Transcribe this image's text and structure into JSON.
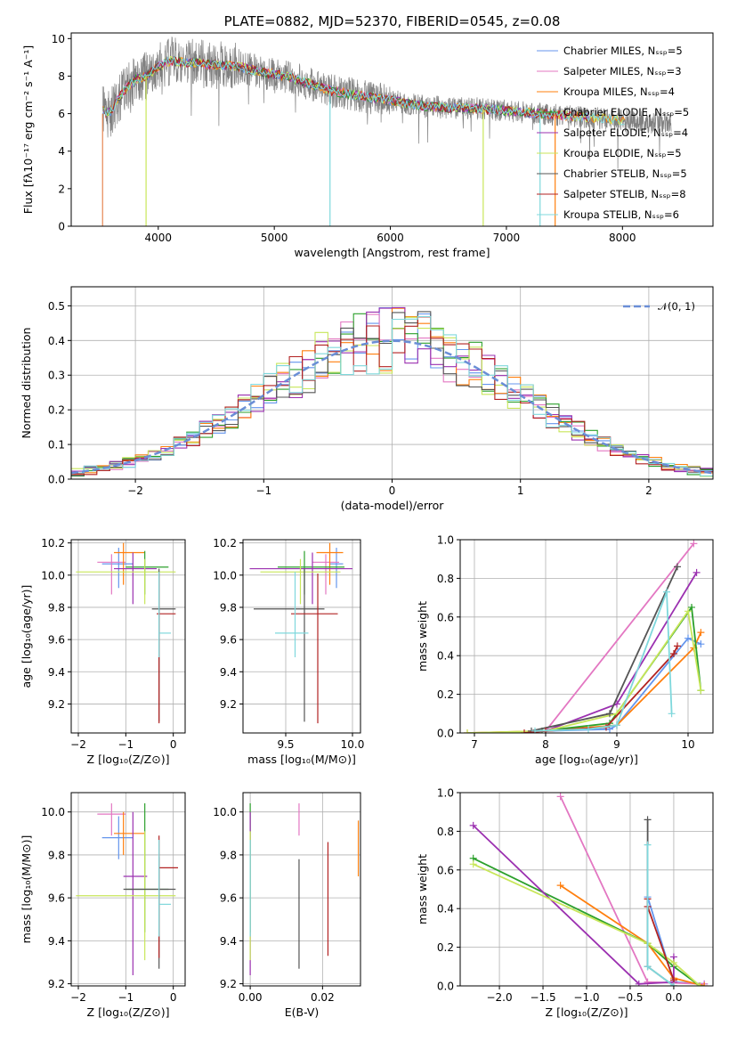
{
  "colors": {
    "Chabrier MILES": "#6495ed",
    "Salpeter MILES": "#e377c2",
    "Kroupa MILES": "#ff7f0e",
    "Chabrier ELODIE": "#2ca02c",
    "Salpeter ELODIE": "#9b30b0",
    "Kroupa ELODIE": "#c8e65a",
    "Chabrier STELIB": "#555555",
    "Salpeter STELIB": "#b22222",
    "Kroupa STELIB": "#7fd8dc"
  },
  "chart_data": [
    {
      "id": "spectrum",
      "type": "line",
      "title": "PLATE=0882, MJD=52370, FIBERID=0545, z=0.08",
      "xlabel": "wavelength [Angstrom, rest frame]",
      "ylabel": "Flux [fλ10⁻¹⁷ erg cm⁻² s⁻¹ A⁻¹]",
      "xlim": [
        3250,
        8780
      ],
      "ylim": [
        0,
        10.3
      ],
      "xticks": [
        "4000",
        "5000",
        "6000",
        "7000",
        "8000"
      ],
      "yticks": [
        "0",
        "2",
        "4",
        "6",
        "8",
        "10"
      ],
      "legend_placement": "right",
      "legend": [
        {
          "model": "Chabrier MILES",
          "label": "Chabrier MILES, Nₛₛₚ=5"
        },
        {
          "model": "Salpeter MILES",
          "label": "Salpeter MILES, Nₛₛₚ=3"
        },
        {
          "model": "Kroupa MILES",
          "label": "Kroupa MILES, Nₛₛₚ=4"
        },
        {
          "model": "Chabrier ELODIE",
          "label": "Chabrier ELODIE, Nₛₛₚ=5"
        },
        {
          "model": "Salpeter ELODIE",
          "label": "Salpeter ELODIE, Nₛₛₚ=4"
        },
        {
          "model": "Kroupa ELODIE",
          "label": "Kroupa ELODIE, Nₛₛₚ=5"
        },
        {
          "model": "Chabrier STELIB",
          "label": "Chabrier STELIB, Nₛₛₚ=5"
        },
        {
          "model": "Salpeter STELIB",
          "label": "Salpeter STELIB, Nₛₛₚ=8"
        },
        {
          "model": "Kroupa STELIB",
          "label": "Kroupa STELIB, Nₛₛₚ=6"
        }
      ],
      "data_series": {
        "name": "observed",
        "color": "#808080"
      },
      "continuum": {
        "x": [
          3520,
          3560,
          3600,
          3700,
          3800,
          3900,
          4000,
          4100,
          4300,
          4500,
          4700,
          4900,
          5100,
          5300,
          5500,
          5700,
          5900,
          6100,
          6300,
          6500,
          6700,
          6900,
          7100,
          7300,
          7500,
          7700,
          7900,
          8100,
          8300,
          8400
        ],
        "y": [
          6.2,
          6.0,
          6.2,
          7.2,
          7.8,
          8.0,
          8.5,
          8.8,
          8.7,
          8.6,
          8.5,
          8.2,
          8.0,
          7.6,
          7.2,
          7.0,
          6.8,
          6.6,
          6.4,
          6.3,
          6.3,
          6.2,
          6.1,
          6.0,
          5.9,
          5.8,
          5.7,
          5.6,
          5.5,
          5.5
        ]
      },
      "model_drops": [
        {
          "model": "Kroupa ELODIE",
          "x": 3895
        },
        {
          "model": "Kroupa STELIB",
          "x": 5480
        },
        {
          "model": "Kroupa ELODIE",
          "x": 6800
        },
        {
          "model": "Kroupa STELIB",
          "x": 7290
        },
        {
          "model": "Kroupa MILES",
          "x": 7420
        }
      ]
    },
    {
      "id": "residuals",
      "type": "step",
      "xlabel": "(data-model)/error",
      "ylabel": "Normed distribution",
      "xlim": [
        -2.5,
        2.5
      ],
      "ylim": [
        0,
        0.555
      ],
      "xticks": [
        "−2",
        "−1",
        "0",
        "1",
        "2"
      ],
      "yticks": [
        "0.0",
        "0.1",
        "0.2",
        "0.3",
        "0.4",
        "0.5"
      ],
      "legend": [
        {
          "label": "𝒩(0, 1)",
          "color": "#6a8ed6",
          "style": "dashed"
        }
      ],
      "legend_placement": "top-right",
      "bin_width": 0.1,
      "reference_curve": "normal(0,1)"
    },
    {
      "id": "age_vs_Z",
      "type": "errorbar",
      "xlabel": "Z [log₁₀(Z/Z⊙)]",
      "ylabel": "age  [log₁₀(age/yr)]",
      "xlim": [
        -2.15,
        0.25
      ],
      "ylim": [
        9.02,
        10.22
      ],
      "xticks": [
        "−2",
        "−1",
        "0"
      ],
      "yticks": [
        "9.2",
        "9.4",
        "9.6",
        "9.8",
        "10.0",
        "10.2"
      ],
      "points": [
        {
          "model": "Chabrier MILES",
          "x": -1.15,
          "y": 10.07,
          "x_err": [
            0.35,
            0.3
          ],
          "y_err": [
            0.15,
            0.1
          ]
        },
        {
          "model": "Salpeter MILES",
          "x": -1.3,
          "y": 10.08,
          "x_err": [
            0.3,
            0.3
          ],
          "y_err": [
            0.2,
            0.05
          ]
        },
        {
          "model": "Kroupa MILES",
          "x": -1.05,
          "y": 10.14,
          "x_err": [
            0.2,
            0.45
          ],
          "y_err": [
            0.2,
            0.06
          ]
        },
        {
          "model": "Chabrier ELODIE",
          "x": -0.6,
          "y": 10.05,
          "x_err": [
            0.4,
            0.5
          ],
          "y_err": [
            0.17,
            0.1
          ]
        },
        {
          "model": "Salpeter ELODIE",
          "x": -0.85,
          "y": 10.04,
          "x_err": [
            0.4,
            0.5
          ],
          "y_err": [
            0.22,
            0.1
          ]
        },
        {
          "model": "Kroupa ELODIE",
          "x": -0.6,
          "y": 10.02,
          "x_err": [
            1.45,
            0.65
          ],
          "y_err": [
            0.2,
            0.08
          ]
        },
        {
          "model": "Chabrier STELIB",
          "x": -0.3,
          "y": 9.79,
          "x_err": [
            0.15,
            0.35
          ],
          "y_err": [
            0.7,
            0.25
          ]
        },
        {
          "model": "Salpeter STELIB",
          "x": -0.3,
          "y": 9.76,
          "x_err": [
            0.05,
            0.35
          ],
          "y_err": [
            0.68,
            0.25
          ]
        },
        {
          "model": "Kroupa STELIB",
          "x": -0.3,
          "y": 9.64,
          "x_err": [
            0.0,
            0.25
          ],
          "y_err": [
            0.15,
            0.38
          ]
        }
      ]
    },
    {
      "id": "age_vs_mass",
      "type": "errorbar",
      "xlabel": "mass [log₁₀(M/M⊙)]",
      "ylabel": "",
      "xlim": [
        9.18,
        10.06
      ],
      "ylim": [
        9.02,
        10.22
      ],
      "xticks": [
        "9.5",
        "10.0"
      ],
      "yticks": [
        "9.2",
        "9.4",
        "9.6",
        "9.8",
        "10.0",
        "10.2"
      ],
      "points": [
        {
          "model": "Chabrier MILES",
          "x": 9.88,
          "y": 10.07,
          "x_err": [
            0.05,
            0.05
          ],
          "y_err": [
            0.15,
            0.1
          ]
        },
        {
          "model": "Salpeter MILES",
          "x": 9.8,
          "y": 10.08,
          "x_err": [
            0.1,
            0.1
          ],
          "y_err": [
            0.2,
            0.05
          ]
        },
        {
          "model": "Kroupa MILES",
          "x": 9.83,
          "y": 10.14,
          "x_err": [
            0.1,
            0.1
          ],
          "y_err": [
            0.2,
            0.06
          ]
        },
        {
          "model": "Chabrier ELODIE",
          "x": 9.64,
          "y": 10.05,
          "x_err": [
            0.2,
            0.3
          ],
          "y_err": [
            0.17,
            0.1
          ]
        },
        {
          "model": "Salpeter ELODIE",
          "x": 9.7,
          "y": 10.04,
          "x_err": [
            0.47,
            0.3
          ],
          "y_err": [
            0.22,
            0.1
          ]
        },
        {
          "model": "Kroupa ELODIE",
          "x": 9.61,
          "y": 10.02,
          "x_err": [
            0.3,
            0.3
          ],
          "y_err": [
            0.2,
            0.08
          ]
        },
        {
          "model": "Chabrier STELIB",
          "x": 9.64,
          "y": 9.79,
          "x_err": [
            0.38,
            0.15
          ],
          "y_err": [
            0.7,
            0.25
          ]
        },
        {
          "model": "Salpeter STELIB",
          "x": 9.74,
          "y": 9.76,
          "x_err": [
            0.2,
            0.15
          ],
          "y_err": [
            0.68,
            0.25
          ]
        },
        {
          "model": "Kroupa STELIB",
          "x": 9.57,
          "y": 9.64,
          "x_err": [
            0.15,
            0.1
          ],
          "y_err": [
            0.15,
            0.38
          ]
        }
      ]
    },
    {
      "id": "weight_vs_age",
      "type": "line",
      "xlabel": "age  [log₁₀(age/yr)]",
      "ylabel": "mass weight",
      "xlim": [
        6.8,
        10.35
      ],
      "ylim": [
        0,
        1.0
      ],
      "xticks": [
        "7",
        "8",
        "9",
        "10"
      ],
      "yticks": [
        "0.0",
        "0.2",
        "0.4",
        "0.6",
        "0.8",
        "1.0"
      ],
      "series": [
        {
          "model": "Chabrier MILES",
          "x": [
            8.0,
            8.9,
            9.0,
            10.0,
            10.18
          ],
          "y": [
            0.01,
            0.02,
            0.04,
            0.49,
            0.46
          ]
        },
        {
          "model": "Salpeter MILES",
          "x": [
            8.0,
            10.08
          ],
          "y": [
            0.01,
            0.98
          ]
        },
        {
          "model": "Kroupa MILES",
          "x": [
            6.9,
            8.0,
            9.0,
            10.08,
            10.18
          ],
          "y": [
            0.0,
            0.01,
            0.04,
            0.44,
            0.52
          ]
        },
        {
          "model": "Chabrier ELODIE",
          "x": [
            7.95,
            8.9,
            10.05,
            10.18
          ],
          "y": [
            0.01,
            0.05,
            0.65,
            0.22
          ]
        },
        {
          "model": "Salpeter ELODIE",
          "x": [
            8.0,
            9.0,
            10.12
          ],
          "y": [
            0.01,
            0.15,
            0.83
          ]
        },
        {
          "model": "Kroupa ELODIE",
          "x": [
            6.9,
            8.0,
            9.0,
            10.0,
            10.18
          ],
          "y": [
            0.0,
            0.01,
            0.1,
            0.63,
            0.22
          ]
        },
        {
          "model": "Chabrier STELIB",
          "x": [
            7.8,
            8.9,
            9.85
          ],
          "y": [
            0.01,
            0.1,
            0.86
          ]
        },
        {
          "model": "Salpeter STELIB",
          "x": [
            7.7,
            8.0,
            8.85,
            9.8,
            9.85
          ],
          "y": [
            0.0,
            0.01,
            0.03,
            0.41,
            0.45
          ]
        },
        {
          "model": "Kroupa STELIB",
          "x": [
            7.85,
            8.6,
            9.0,
            9.7,
            9.77
          ],
          "y": [
            0.01,
            0.02,
            0.04,
            0.73,
            0.1
          ]
        }
      ]
    },
    {
      "id": "mass_vs_Z",
      "type": "errorbar",
      "xlabel": "Z [log₁₀(Z/Z⊙)]",
      "ylabel": "mass [log₁₀(M/M⊙)]",
      "xlim": [
        -2.15,
        0.25
      ],
      "ylim": [
        9.19,
        10.09
      ],
      "xticks": [
        "−2",
        "−1",
        "0"
      ],
      "yticks": [
        "9.2",
        "9.4",
        "9.6",
        "9.8",
        "10.0"
      ],
      "points": [
        {
          "model": "Chabrier MILES",
          "x": -1.15,
          "y": 9.88,
          "x_err": [
            0.35,
            0.3
          ],
          "y_err": [
            0.1,
            0.1
          ]
        },
        {
          "model": "Salpeter MILES",
          "x": -1.3,
          "y": 9.99,
          "x_err": [
            0.3,
            0.3
          ],
          "y_err": [
            0.1,
            0.05
          ]
        },
        {
          "model": "Kroupa MILES",
          "x": -1.05,
          "y": 9.9,
          "x_err": [
            0.2,
            0.45
          ],
          "y_err": [
            0.1,
            0.1
          ]
        },
        {
          "model": "Chabrier ELODIE",
          "x": -0.6,
          "y": 9.64,
          "x_err": [
            0.4,
            0.5
          ],
          "y_err": [
            0.2,
            0.4
          ]
        },
        {
          "model": "Salpeter ELODIE",
          "x": -0.85,
          "y": 9.7,
          "x_err": [
            0.2,
            0.3
          ],
          "y_err": [
            0.46,
            0.3
          ]
        },
        {
          "model": "Kroupa ELODIE",
          "x": -0.6,
          "y": 9.61,
          "x_err": [
            1.45,
            0.65
          ],
          "y_err": [
            0.3,
            0.3
          ]
        },
        {
          "model": "Chabrier STELIB",
          "x": -0.3,
          "y": 9.64,
          "x_err": [
            0.75,
            0.35
          ],
          "y_err": [
            0.37,
            0.15
          ]
        },
        {
          "model": "Salpeter STELIB",
          "x": -0.3,
          "y": 9.74,
          "x_err": [
            0.0,
            0.4
          ],
          "y_err": [
            0.42,
            0.15
          ]
        },
        {
          "model": "Kroupa STELIB",
          "x": -0.3,
          "y": 9.57,
          "x_err": [
            0.0,
            0.25
          ],
          "y_err": [
            0.15,
            0.3
          ]
        }
      ]
    },
    {
      "id": "mass_vs_ebv",
      "type": "errorbar",
      "xlabel": "E(B-V)",
      "ylabel": "",
      "xlim": [
        -0.002,
        0.0305
      ],
      "ylim": [
        9.19,
        10.09
      ],
      "xticks": [
        "0.00",
        "0.02"
      ],
      "yticks": [
        "9.2",
        "9.4",
        "9.6",
        "9.8",
        "10.0"
      ],
      "points": [
        {
          "model": "Chabrier ELODIE",
          "x": 0.0,
          "y": 9.64,
          "y_err": [
            0.2,
            0.4
          ]
        },
        {
          "model": "Salpeter ELODIE",
          "x": 0.0,
          "y": 9.7,
          "y_err": [
            0.46,
            0.3
          ]
        },
        {
          "model": "Kroupa ELODIE",
          "x": 0.0,
          "y": 9.61,
          "y_err": [
            0.3,
            0.3
          ]
        },
        {
          "model": "Kroupa STELIB",
          "x": 0.0,
          "y": 9.57,
          "y_err": [
            0.15,
            0.3
          ]
        },
        {
          "model": "Salpeter MILES",
          "x": 0.0135,
          "y": 9.99,
          "y_err": [
            0.1,
            0.05
          ]
        },
        {
          "model": "Chabrier STELIB",
          "x": 0.0135,
          "y": 9.52,
          "y_err": [
            0.25,
            0.26
          ]
        },
        {
          "model": "Salpeter STELIB",
          "x": 0.0215,
          "y": 9.59,
          "y_err": [
            0.26,
            0.27
          ]
        },
        {
          "model": "Kroupa MILES",
          "x": 0.0299,
          "y": 9.83,
          "y_err": [
            0.13,
            0.13
          ]
        }
      ]
    },
    {
      "id": "weight_vs_Z",
      "type": "line",
      "xlabel": "Z [log₁₀(Z/Z⊙)]",
      "ylabel": "mass weight",
      "xlim": [
        -2.45,
        0.45
      ],
      "ylim": [
        0,
        1.0
      ],
      "xticks": [
        "−2.0",
        "−1.5",
        "−1.0",
        "−0.5",
        "0.0"
      ],
      "yticks": [
        "0.0",
        "0.2",
        "0.4",
        "0.6",
        "0.8",
        "1.0"
      ],
      "series": [
        {
          "model": "Chabrier MILES",
          "x": [
            -0.3,
            0.0,
            0.35
          ],
          "y": [
            0.46,
            0.02,
            0.01
          ]
        },
        {
          "model": "Salpeter MILES",
          "x": [
            -1.3,
            -0.3,
            0.35
          ],
          "y": [
            0.98,
            0.02,
            0.01
          ]
        },
        {
          "model": "Kroupa MILES",
          "x": [
            -1.3,
            -0.3,
            0.0,
            0.35
          ],
          "y": [
            0.52,
            0.22,
            0.04,
            0.0
          ]
        },
        {
          "model": "Chabrier ELODIE",
          "x": [
            -2.3,
            -0.3,
            0.0,
            0.3
          ],
          "y": [
            0.66,
            0.22,
            0.1,
            0.0
          ]
        },
        {
          "model": "Salpeter ELODIE",
          "x": [
            -2.3,
            -0.4,
            0.0,
            0.0
          ],
          "y": [
            0.83,
            0.01,
            0.02,
            0.15
          ]
        },
        {
          "model": "Kroupa ELODIE",
          "x": [
            -2.3,
            -0.3,
            0.0,
            0.3
          ],
          "y": [
            0.63,
            0.22,
            0.12,
            0.0
          ]
        },
        {
          "model": "Chabrier STELIB",
          "x": [
            -0.3,
            -0.3,
            0.0
          ],
          "y": [
            0.86,
            0.1,
            0.0
          ]
        },
        {
          "model": "Salpeter STELIB",
          "x": [
            -0.3,
            -0.3,
            0.0
          ],
          "y": [
            0.45,
            0.41,
            0.03
          ]
        },
        {
          "model": "Kroupa STELIB",
          "x": [
            -0.3,
            -0.3,
            0.0
          ],
          "y": [
            0.73,
            0.1,
            0.0
          ]
        }
      ]
    }
  ]
}
